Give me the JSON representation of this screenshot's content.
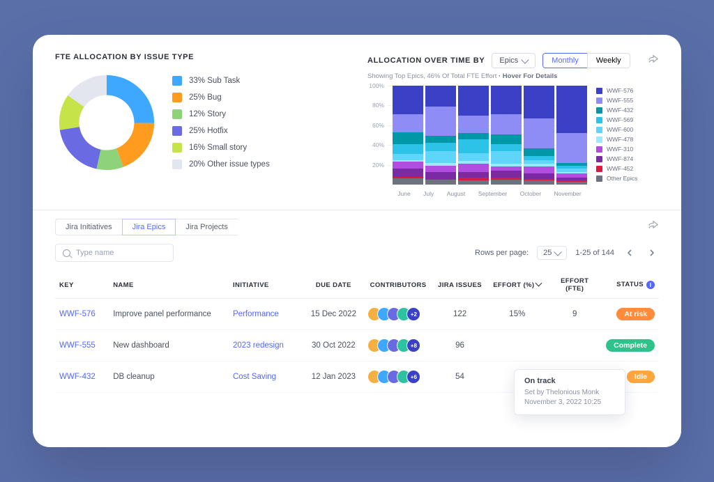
{
  "donut_panel": {
    "title": "FTE ALLOCATION BY ISSUE TYPE",
    "slices": [
      {
        "label": "33% Sub Task",
        "value": 33,
        "color": "#3ea7ff"
      },
      {
        "label": "25% Bug",
        "value": 25,
        "color": "#ff9b1f"
      },
      {
        "label": "12% Story",
        "value": 12,
        "color": "#8ed37a"
      },
      {
        "label": "25% Hotfix",
        "value": 25,
        "color": "#6a6be3"
      },
      {
        "label": "16% Small story",
        "value": 16,
        "color": "#c6e34a"
      },
      {
        "label": "20% Other issue types",
        "value": 20,
        "color": "#e3e6ef"
      }
    ],
    "donut_inner_ratio": 0.58,
    "background": "#ffffff"
  },
  "bar_panel": {
    "title": "ALLOCATION OVER TIME BY",
    "dropdown_value": "Epics",
    "segmented": {
      "options": [
        "Monthly",
        "Weekly"
      ],
      "active": "Monthly"
    },
    "subtext": "Showing Top Epics, 46% Of Total FTE Effort",
    "subtext_hover": "· Hover For Details",
    "y_ticks": [
      20,
      40,
      60,
      80,
      100
    ],
    "y_suffix": "%",
    "x_labels": [
      "June",
      "July",
      "August",
      "September",
      "October",
      "November"
    ],
    "series_colors": {
      "WWF-576": "#3a41c7",
      "WWF-555": "#8e8df5",
      "WWF-432": "#0097a7",
      "WWF-569": "#2dc3e8",
      "WWF-600": "#5fd5fa",
      "WWF-478": "#9ee8ff",
      "WWF-310": "#b14de0",
      "WWF-874": "#7a2aa3",
      "WWF-452": "#d81b3e",
      "Other Epics": "#6d7280"
    },
    "series_order": [
      "Other Epics",
      "WWF-452",
      "WWF-874",
      "WWF-310",
      "WWF-478",
      "WWF-600",
      "WWF-569",
      "WWF-432",
      "WWF-555",
      "WWF-576"
    ],
    "stacks": [
      {
        "Other Epics": 6,
        "WWF-452": 2,
        "WWF-874": 8,
        "WWF-310": 7,
        "WWF-478": 2,
        "WWF-600": 6,
        "WWF-569": 10,
        "WWF-432": 12,
        "WWF-555": 18,
        "WWF-576": 29
      },
      {
        "Other Epics": 5,
        "WWF-452": 1,
        "WWF-874": 7,
        "WWF-310": 6,
        "WWF-478": 3,
        "WWF-600": 12,
        "WWF-569": 8,
        "WWF-432": 7,
        "WWF-555": 30,
        "WWF-576": 21
      },
      {
        "Other Epics": 4,
        "WWF-452": 3,
        "WWF-874": 6,
        "WWF-310": 8,
        "WWF-478": 3,
        "WWF-600": 8,
        "WWF-569": 14,
        "WWF-432": 6,
        "WWF-555": 18,
        "WWF-576": 30
      },
      {
        "Other Epics": 5,
        "WWF-452": 2,
        "WWF-874": 7,
        "WWF-310": 4,
        "WWF-478": 3,
        "WWF-600": 13,
        "WWF-569": 7,
        "WWF-432": 10,
        "WWF-555": 20,
        "WWF-576": 29
      },
      {
        "Other Epics": 4,
        "WWF-452": 2,
        "WWF-874": 5,
        "WWF-310": 7,
        "WWF-478": 3,
        "WWF-600": 4,
        "WWF-569": 4,
        "WWF-432": 8,
        "WWF-555": 30,
        "WWF-576": 33
      },
      {
        "Other Epics": 3,
        "WWF-452": 1,
        "WWF-874": 3,
        "WWF-310": 4,
        "WWF-478": 2,
        "WWF-600": 3,
        "WWF-569": 3,
        "WWF-432": 3,
        "WWF-555": 30,
        "WWF-576": 48
      }
    ],
    "legend_title_color": "#6b7184"
  },
  "tabs": {
    "items": [
      "Jira Initiatives",
      "Jira Epics",
      "Jira Projects"
    ],
    "active": 1
  },
  "search": {
    "placeholder": "Type name"
  },
  "pager": {
    "rows_label": "Rows per page:",
    "rows_value": "25",
    "range": "1-25 of 144"
  },
  "table": {
    "columns": [
      "KEY",
      "NAME",
      "INITIATIVE",
      "DUE DATE",
      "CONTRIBUTORS",
      "JIRA ISSUES",
      "EFFORT (%)",
      "EFFORT (FTE)",
      "STATUS"
    ],
    "status_info": "i",
    "avatar_colors": [
      "#f5b042",
      "#3ea7ff",
      "#6a6be3",
      "#2dc3a0"
    ],
    "rows": [
      {
        "key": "WWF-576",
        "name": "Improve panel performance",
        "initiative": "Performance",
        "due": "15 Dec 2022",
        "extra": "+2",
        "issues": "122",
        "effort_pct": "15%",
        "effort_fte": "9",
        "status": {
          "label": "At risk",
          "color": "#ff8b3d"
        }
      },
      {
        "key": "WWF-555",
        "name": "New dashboard",
        "initiative": "2023 redesign",
        "due": "30 Oct 2022",
        "extra": "+8",
        "issues": "96",
        "effort_pct": "",
        "effort_fte": "",
        "status": {
          "label": "Complete",
          "color": "#2dc38a"
        }
      },
      {
        "key": "WWF-432",
        "name": "DB cleanup",
        "initiative": "Cost Saving",
        "due": "12 Jan 2023",
        "extra": "+6",
        "issues": "54",
        "effort_pct": "",
        "effort_fte": "",
        "status": {
          "label": "Idle",
          "color": "#ffa63d"
        }
      }
    ]
  },
  "tooltip": {
    "title": "On track",
    "line1": "Set by Thelonious Monk",
    "line2": "November 3, 2022 10:25"
  }
}
